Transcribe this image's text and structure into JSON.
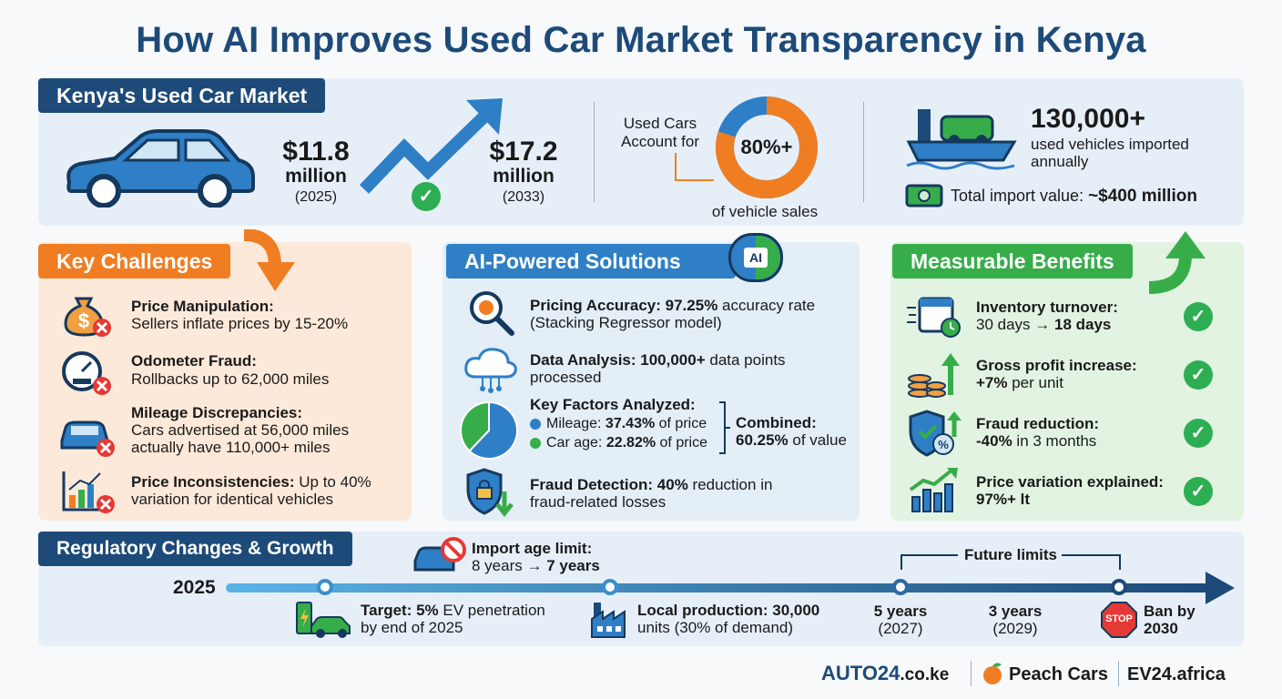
{
  "title": "How AI Improves Used Car Market Transparency in Kenya",
  "market": {
    "heading": "Kenya's Used Car Market",
    "value_2025": "$11.8",
    "unit_2025": "million",
    "year_2025": "(2025)",
    "value_2033": "$17.2",
    "unit_2033": "million",
    "year_2033": "(2033)",
    "share_label_1": "Used Cars",
    "share_label_2": "Account for",
    "share_value": "80%+",
    "share_percent": 80,
    "share_caption": "of vehicle sales",
    "imports_count": "130,000+",
    "imports_line1": "used vehicles imported",
    "imports_line2": "annually",
    "import_value_label": "Total import value: ",
    "import_value": "~$400 million"
  },
  "challenges": {
    "heading": "Key Challenges",
    "items": [
      {
        "title": "Price Manipulation:",
        "text": "Sellers inflate prices by 15-20%"
      },
      {
        "title": "Odometer Fraud:",
        "text": "Rollbacks up to 62,000 miles"
      },
      {
        "title": "Mileage Discrepancies:",
        "text": "Cars advertised at 56,000 miles",
        "text2": "actually have 110,000+ miles"
      },
      {
        "title": "Price Inconsistencies:",
        "title_rest": " Up to 40%",
        "text": "variation for identical vehicles"
      }
    ]
  },
  "solutions": {
    "heading": "AI-Powered Solutions",
    "brain_label": "AI",
    "pricing_title": "Pricing Accuracy: 97.25%",
    "pricing_rest": " accuracy rate",
    "pricing_line2": "(Stacking Regressor model)",
    "data_title": "Data Analysis: 100,000+",
    "data_rest": " data points",
    "data_line2": "processed",
    "factors_title": "Key Factors Analyzed:",
    "mileage_label": "Mileage: ",
    "mileage_value": "37.43%",
    "mileage_rest": " of price",
    "mileage_percent": 37.43,
    "age_label": "Car age: ",
    "age_value": "22.82%",
    "age_rest": " of price",
    "age_percent": 22.82,
    "combined_title": "Combined:",
    "combined_value": "60.25%",
    "combined_rest": " of value",
    "fraud_title": "Fraud Detection: 40%",
    "fraud_rest": " reduction in",
    "fraud_line2": "fraud-related losses",
    "colors": {
      "mileage": "#2f7fc6",
      "age": "#37ad4a"
    }
  },
  "benefits": {
    "heading": "Measurable Benefits",
    "items": [
      {
        "title": "Inventory turnover:",
        "line2a": "30 days → ",
        "line2b": "18 days"
      },
      {
        "title": "Gross profit increase:",
        "line2a": "+7%",
        "line2b": " per unit"
      },
      {
        "title": "Fraud reduction:",
        "line2a": "-40%",
        "line2b": " in 3 months"
      },
      {
        "title": "Price variation explained:",
        "line2a": "97%+ lt",
        "line2b": ""
      }
    ]
  },
  "regulatory": {
    "heading": "Regulatory Changes & Growth",
    "start_year": "2025",
    "import_title": "Import age limit:",
    "import_line2a": "8 years → ",
    "import_line2b": "7 years",
    "future_label": "Future limits",
    "ev_title": "Target: 5%",
    "ev_rest": " EV penetration",
    "ev_line2": "by end of 2025",
    "local_title": "Local production: 30,000",
    "local_line2": "units (30% of demand)",
    "limit1_title": "5 years",
    "limit1_year": "(2027)",
    "limit2_title": "3 years",
    "limit2_year": "(2029)",
    "stop_sign": "STOP",
    "ban_line1": "Ban by",
    "ban_line2": "2030"
  },
  "brands": {
    "auto24_a": "AUTO24",
    "auto24_b": ".co.ke",
    "peach": "Peach Cars",
    "ev24": "EV24.africa"
  }
}
